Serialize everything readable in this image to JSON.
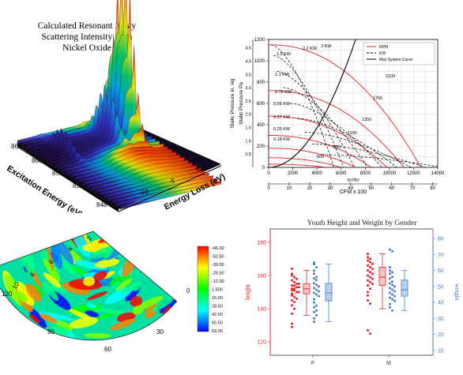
{
  "chart_data": [
    {
      "type": "area",
      "title": "Calculated Resonant X-ray Scattering Intensity from Nickel Oxide",
      "title_lines": [
        "Calculated Resonant X-ray",
        "Scattering Intensity from",
        "Nickel Oxide"
      ],
      "xlabel": "Energy Loss (eV)",
      "ylabel": "Excitation Energy (eV)",
      "x_ticks": [
        "-10",
        "-5",
        "0"
      ],
      "y_ticks": [
        "848",
        "852",
        "856",
        "860",
        "862"
      ],
      "x_peaks": [
        -1.2,
        -1.7,
        -2.3,
        -3.4,
        -9.0
      ],
      "x_peak_heights": [
        1.0,
        0.55,
        0.48,
        0.32,
        0.12
      ],
      "colormap": [
        "#1a0a3a",
        "#3030c0",
        "#00a0e0",
        "#00c060",
        "#e0e000",
        "#ff8000",
        "#d00000"
      ]
    },
    {
      "type": "line",
      "legend": [
        "RPM",
        "KW",
        "Max System Curve"
      ],
      "legend_placement": "top-right",
      "ylabel_left": "Static Pressure in. wg",
      "ylabel_right": "Static Pressure Pa",
      "xlabel_top": "m³/hr",
      "xlabel_bottom": "CFM x 100",
      "y_in_ticks": [
        "0.5",
        "1.0",
        "1.5",
        "2.0",
        "2.5",
        "3.0",
        "3.5",
        "4.0",
        "4.5"
      ],
      "y_pa_ticks": [
        "0",
        "200",
        "400",
        "600",
        "800",
        "1000",
        "1200"
      ],
      "x_m3_ticks": [
        "0",
        "2000",
        "4000",
        "6000",
        "8000",
        "10000",
        "12000",
        "14000"
      ],
      "x_cfm_ticks": [
        "0",
        "10",
        "20",
        "30",
        "40",
        "50",
        "60",
        "70",
        "80"
      ],
      "ylim_pa": [
        0,
        1200
      ],
      "xlim_m3": [
        0,
        14000
      ],
      "rpm_series": [
        {
          "name": "500",
          "max_pressure": 30,
          "max_flow": 4800
        },
        {
          "name": "800",
          "max_pressure": 90,
          "max_flow": 6000
        },
        {
          "name": "1100",
          "max_pressure": 180,
          "max_flow": 7200
        },
        {
          "name": "1350",
          "max_pressure": 300,
          "max_flow": 8500
        },
        {
          "name": "1700",
          "max_pressure": 480,
          "max_flow": 9800
        },
        {
          "name": "2100",
          "max_pressure": 720,
          "max_flow": 11200
        },
        {
          "name": "",
          "max_pressure": 1150,
          "max_flow": 12600
        }
      ],
      "kw_labels": [
        "1.5 KW",
        "1.1 KW",
        "0.75 KW",
        "0.55 KW",
        "0.37 KW",
        "0.25 KW",
        "0.18 KW",
        "2.2 KW",
        "3 KW"
      ],
      "rpm_labels": [
        "500",
        "800",
        "1100",
        "1350",
        "1700",
        "2100"
      ],
      "system_curve_max_pressure": 1200,
      "system_curve_max_flow": 7200,
      "colors": {
        "rpm": "#e8232a",
        "kw": "#000000",
        "system": "#000000"
      }
    },
    {
      "type": "heatmap",
      "projection": "polar-sector",
      "angle_ticks": [
        "0",
        "30",
        "60",
        "90",
        "120"
      ],
      "radial_ticks": [
        "2",
        "4",
        "6",
        "8",
        "10"
      ],
      "colorbar_ticks": [
        "-66.00",
        "-52.50",
        "-39.00",
        "-25.50",
        "-12.00",
        "1.500",
        "15.00",
        "28.50",
        "42.00",
        "55.50",
        "69.00"
      ],
      "colorbar_range": [
        -66.0,
        69.0
      ],
      "colormap": [
        "#ff0000",
        "#ff8000",
        "#ffff00",
        "#80ff00",
        "#00ff00",
        "#00ff80",
        "#00ffff",
        "#0080ff",
        "#0000ff"
      ]
    },
    {
      "type": "scatter",
      "title": "Youth Height and Weight by Gender",
      "ylabel_left": "height",
      "ylabel_right": "weight",
      "categories": [
        "F",
        "M"
      ],
      "height_ticks": [
        "120",
        "140",
        "160",
        "180"
      ],
      "weight_ticks": [
        "10",
        "20",
        "30",
        "40",
        "50",
        "60",
        "70",
        "80"
      ],
      "ylim_height": [
        112,
        188
      ],
      "ylim_weight": [
        7,
        86
      ],
      "series": [
        {
          "name": "height",
          "axis": "left",
          "color": "#e8232a",
          "groups": [
            {
              "category": "F",
              "q1": 149,
              "median": 152,
              "q3": 155,
              "whisker_low": 136,
              "whisker_high": 163,
              "mean": 152,
              "points": [
                164,
                161,
                160,
                159,
                158,
                157,
                156,
                155,
                155,
                154,
                154,
                153,
                153,
                152,
                152,
                151,
                151,
                150,
                150,
                149,
                148,
                147,
                146,
                145,
                144,
                142,
                140,
                137,
                131,
                129
              ]
            },
            {
              "category": "M",
              "q1": 154,
              "median": 159,
              "q3": 165,
              "whisker_low": 140,
              "whisker_high": 173,
              "mean": 159,
              "points": [
                173,
                171,
                170,
                169,
                168,
                167,
                166,
                165,
                164,
                163,
                162,
                161,
                160,
                159,
                158,
                157,
                156,
                155,
                154,
                152,
                150,
                148,
                145,
                143,
                127,
                125
              ]
            }
          ]
        },
        {
          "name": "weight",
          "axis": "right",
          "color": "#4a7fbf",
          "groups": [
            {
              "category": "F",
              "q1": 41,
              "median": 46,
              "q3": 52,
              "whisker_low": 28,
              "whisker_high": 64,
              "mean": 46,
              "points": [
                65,
                64,
                62,
                60,
                58,
                56,
                55,
                54,
                52,
                51,
                50,
                49,
                48,
                47,
                46,
                45,
                44,
                42,
                40,
                38,
                37,
                35,
                34,
                32,
                30,
                28
              ]
            },
            {
              "category": "M",
              "q1": 44,
              "median": 48,
              "q3": 54,
              "whisker_low": 35,
              "whisker_high": 60,
              "mean": 48,
              "points": [
                73,
                72,
                62,
                60,
                59,
                58,
                56,
                55,
                53,
                52,
                51,
                50,
                49,
                48,
                47,
                46,
                45,
                44,
                43,
                42,
                41,
                39,
                37,
                35
              ]
            }
          ]
        }
      ]
    }
  ]
}
